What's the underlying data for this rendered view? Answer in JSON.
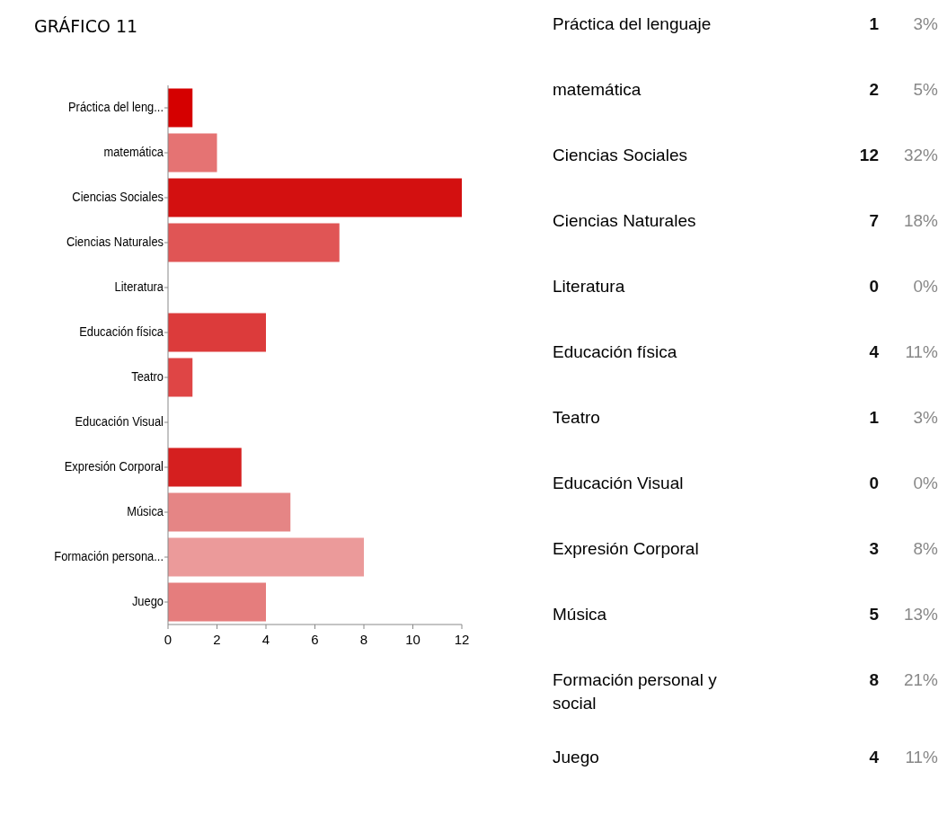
{
  "chart_data": [
    {
      "type": "bar",
      "orientation": "horizontal",
      "title": "GRÁFICO 11",
      "categories": [
        "Práctica del leng...",
        "matemática",
        "Ciencias Sociales",
        "Ciencias Naturales",
        "Literatura",
        "Educación física",
        "Teatro",
        "Educación Visual",
        "Expresión Corporal",
        "Música",
        "Formación persona...",
        "Juego"
      ],
      "values": [
        1,
        2,
        12,
        7,
        0,
        4,
        1,
        0,
        3,
        5,
        8,
        4
      ],
      "colors": [
        "#d50000",
        "#e57373",
        "#d31010",
        "#e05555",
        "#e05555",
        "#dc3b3b",
        "#df4545",
        "#df4545",
        "#d51f1f",
        "#e58585",
        "#eb9a9a",
        "#e57d7d"
      ],
      "xlim": [
        0,
        12
      ],
      "xticks": [
        0,
        2,
        4,
        6,
        8,
        10,
        12
      ],
      "grid": false
    },
    {
      "type": "other",
      "categories": [
        "Práctica del lenguaje",
        "matemática",
        "Ciencias Sociales",
        "Ciencias Naturales",
        "Literatura",
        "Educación física",
        "Teatro",
        "Educación Visual",
        "Expresión Corporal",
        "Música",
        "Formación personal y social",
        "Juego"
      ],
      "series": [
        {
          "values": [
            1,
            2,
            12,
            7,
            0,
            4,
            1,
            0,
            3,
            5,
            8,
            4
          ]
        }
      ],
      "annotations": [
        "3%",
        "5%",
        "32%",
        "18%",
        "0%",
        "11%",
        "3%",
        "0%",
        "8%",
        "13%",
        "21%",
        "11%"
      ],
      "data_labels": true
    }
  ]
}
